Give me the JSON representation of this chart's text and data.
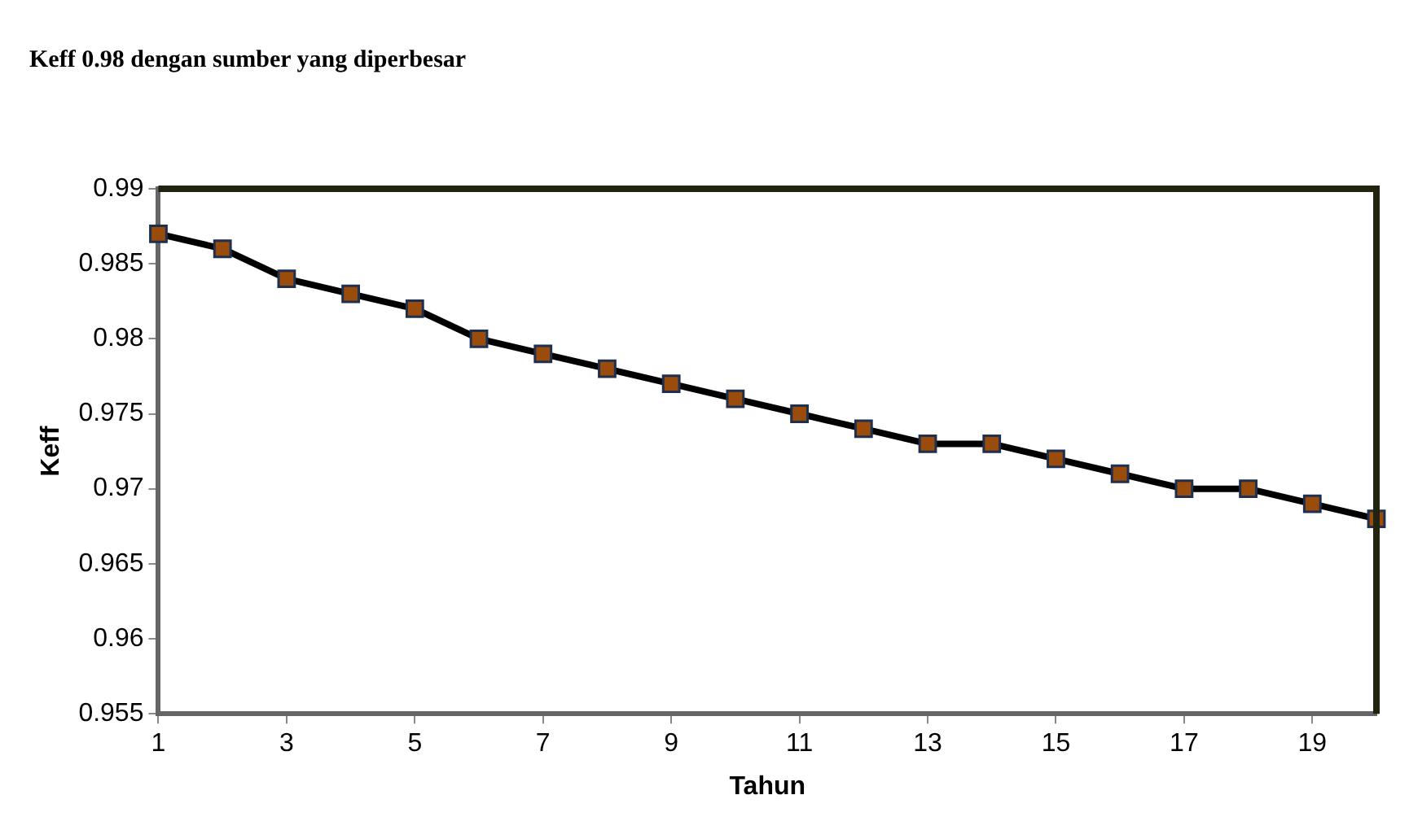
{
  "chart_data": {
    "type": "line",
    "title": "Keff 0.98 dengan sumber yang diperbesar",
    "xlabel": "Tahun",
    "ylabel": "Keff",
    "x": [
      1,
      2,
      3,
      4,
      5,
      6,
      7,
      8,
      9,
      10,
      11,
      12,
      13,
      14,
      15,
      16,
      17,
      18,
      19,
      20
    ],
    "series": [
      {
        "color": "#994c0c",
        "values": [
          0.987,
          0.986,
          0.984,
          0.983,
          0.982,
          0.98,
          0.979,
          0.978,
          0.977,
          0.976,
          0.975,
          0.974,
          0.973,
          0.973,
          0.972,
          0.971,
          0.97,
          0.97,
          0.969,
          0.968
        ]
      }
    ],
    "xlim": [
      1,
      20
    ],
    "xticks": [
      1,
      3,
      5,
      7,
      9,
      11,
      13,
      15,
      17,
      19
    ],
    "ylim": [
      0.955,
      0.99
    ],
    "yticks": [
      0.955,
      0.96,
      0.965,
      0.97,
      0.975,
      0.98,
      0.985,
      0.99
    ],
    "grid": false,
    "legend": false,
    "marker": "square",
    "line_style": "solid"
  }
}
